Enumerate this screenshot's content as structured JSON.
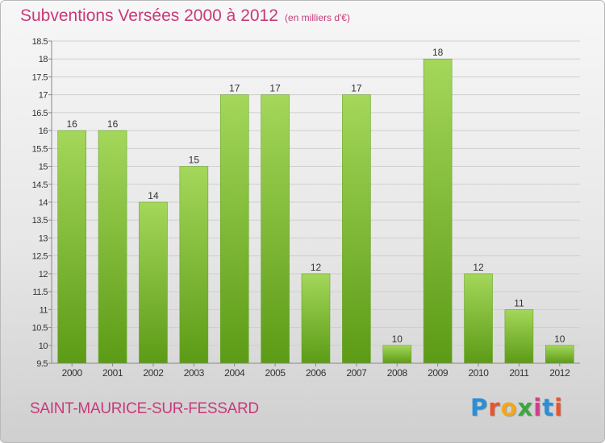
{
  "header": {
    "title": "Subventions Versées 2000 à 2012",
    "subtitle": "(en milliers d'€)"
  },
  "footer": {
    "commune": "SAINT-MAURICE-SUR-FESSARD",
    "logo": "Proxiti"
  },
  "colors": {
    "title": "#c8397a",
    "bar_light": "#a4d75a",
    "bar_dark": "#5c9b16",
    "logo_letters": [
      "#2b8fd6",
      "#e8552a",
      "#f2a81d",
      "#3aa842",
      "#d23c8c",
      "#2b8fd6",
      "#e8552a"
    ]
  },
  "chart_data": {
    "type": "bar",
    "categories": [
      "2000",
      "2001",
      "2002",
      "2003",
      "2004",
      "2005",
      "2006",
      "2007",
      "2008",
      "2009",
      "2010",
      "2011",
      "2012"
    ],
    "values": [
      16,
      16,
      14,
      15,
      17,
      17,
      12,
      17,
      10,
      18,
      12,
      11,
      10
    ],
    "ylim": [
      9.5,
      18.5
    ],
    "yticks": [
      "9.5",
      "10",
      "10.5",
      "11",
      "11.5",
      "12",
      "12.5",
      "13",
      "13.5",
      "14",
      "14.5",
      "15",
      "15.5",
      "16",
      "16.5",
      "17",
      "17.5",
      "18",
      "18.5"
    ],
    "grid": true,
    "xlabel": "",
    "ylabel": ""
  }
}
